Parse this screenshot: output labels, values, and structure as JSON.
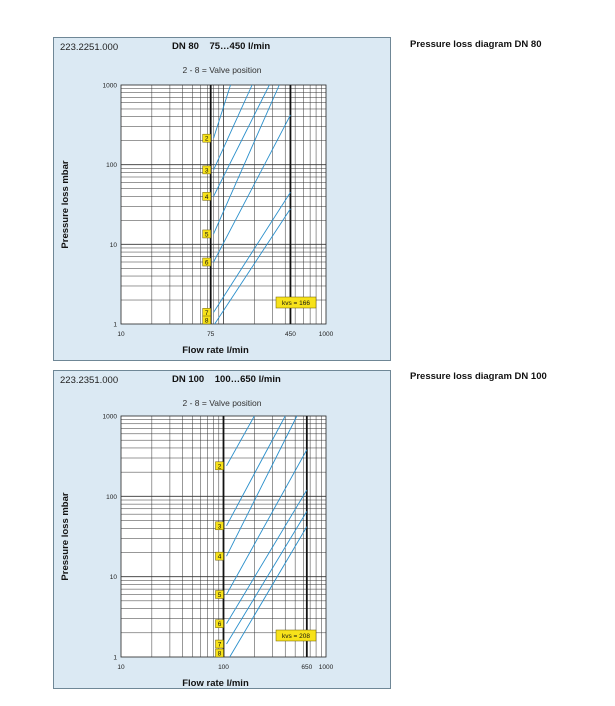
{
  "diagrams": [
    {
      "side_title": "Pressure loss diagram DN 80",
      "code": "223.2251.000",
      "title": "DN 80    75…450 l/min",
      "subtitle": "2 - 8 = Valve position",
      "ylabel": "Pressure loss mbar",
      "xlabel": "Flow rate l/min",
      "kvs_label": "kvs = 166"
    },
    {
      "side_title": "Pressure loss diagram DN 100",
      "code": "223.2351.000",
      "title": "DN 100    100…650 l/min",
      "subtitle": "2 - 8 = Valve position",
      "ylabel": "Pressure loss mbar",
      "xlabel": "Flow rate l/min",
      "kvs_label": "kvs = 208"
    }
  ],
  "chart_data": [
    {
      "type": "line",
      "x_scale": "log",
      "y_scale": "log",
      "xlim": [
        10,
        1000
      ],
      "ylim": [
        1,
        1000
      ],
      "x_ticks": [
        "10",
        "75",
        "450",
        "1000"
      ],
      "y_ticks": [
        "1",
        "10",
        "100",
        "1000"
      ],
      "highlight_x": [
        75,
        450
      ],
      "grid": true,
      "series": [
        {
          "name": "2",
          "label_x": 75,
          "points": [
            [
              80,
              215
            ],
            [
              117,
              1000
            ]
          ]
        },
        {
          "name": "3",
          "label_x": 75,
          "points": [
            [
              80,
              86
            ],
            [
              190,
              1000
            ]
          ]
        },
        {
          "name": "4",
          "label_x": 75,
          "points": [
            [
              80,
              40
            ],
            [
              280,
              1000
            ]
          ]
        },
        {
          "name": "5",
          "label_x": 75,
          "points": [
            [
              80,
              13.5
            ],
            [
              350,
              1000
            ]
          ]
        },
        {
          "name": "6",
          "label_x": 75,
          "points": [
            [
              80,
              6
            ],
            [
              450,
              420
            ]
          ]
        },
        {
          "name": "7",
          "label_x": 75,
          "points": [
            [
              80,
              1.4
            ],
            [
              450,
              45
            ]
          ]
        },
        {
          "name": "8",
          "label_x": 75,
          "points": [
            [
              82,
              1
            ],
            [
              450,
              28
            ]
          ]
        }
      ]
    },
    {
      "type": "line",
      "x_scale": "log",
      "y_scale": "log",
      "xlim": [
        10,
        1000
      ],
      "ylim": [
        1,
        1000
      ],
      "x_ticks": [
        "10",
        "100",
        "650",
        "1000"
      ],
      "y_ticks": [
        "1",
        "10",
        "100",
        "1000"
      ],
      "highlight_x": [
        100,
        650
      ],
      "grid": true,
      "series": [
        {
          "name": "2",
          "label_x": 100,
          "points": [
            [
              107,
              240
            ],
            [
              200,
              1000
            ]
          ]
        },
        {
          "name": "3",
          "label_x": 100,
          "points": [
            [
              107,
              43
            ],
            [
              400,
              1000
            ]
          ]
        },
        {
          "name": "4",
          "label_x": 100,
          "points": [
            [
              107,
              18
            ],
            [
              520,
              1000
            ]
          ]
        },
        {
          "name": "5",
          "label_x": 100,
          "points": [
            [
              107,
              6
            ],
            [
              650,
              380
            ]
          ]
        },
        {
          "name": "6",
          "label_x": 100,
          "points": [
            [
              107,
              2.6
            ],
            [
              650,
              120
            ]
          ]
        },
        {
          "name": "7",
          "label_x": 100,
          "points": [
            [
              107,
              1.45
            ],
            [
              650,
              65
            ]
          ]
        },
        {
          "name": "8",
          "label_x": 100,
          "points": [
            [
              115,
              1
            ],
            [
              650,
              42
            ]
          ]
        }
      ]
    }
  ]
}
